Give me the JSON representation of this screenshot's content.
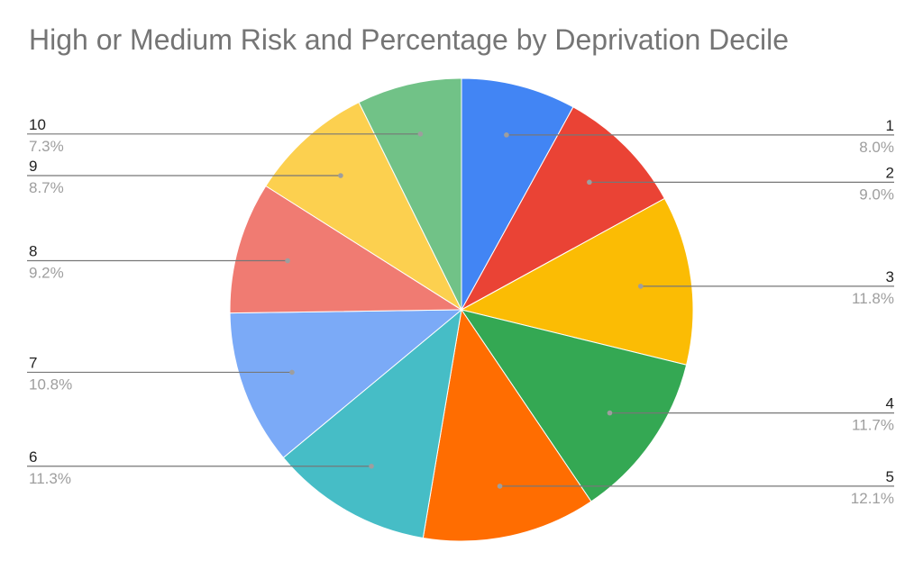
{
  "chart_data": {
    "type": "pie",
    "title": "High or Medium Risk and Percentage by Deprivation Decile",
    "slices": [
      {
        "label": "1",
        "percent_label": "8.0%",
        "value": 8.0,
        "color": "#4285F4"
      },
      {
        "label": "2",
        "percent_label": "9.0%",
        "value": 9.0,
        "color": "#EA4335"
      },
      {
        "label": "3",
        "percent_label": "11.8%",
        "value": 11.8,
        "color": "#FBBC04"
      },
      {
        "label": "4",
        "percent_label": "11.7%",
        "value": 11.7,
        "color": "#34A853"
      },
      {
        "label": "5",
        "percent_label": "12.1%",
        "value": 12.1,
        "color": "#FF6D01"
      },
      {
        "label": "6",
        "percent_label": "11.3%",
        "value": 11.3,
        "color": "#46BDC6"
      },
      {
        "label": "7",
        "percent_label": "10.8%",
        "value": 10.8,
        "color": "#7BAAF7"
      },
      {
        "label": "8",
        "percent_label": "9.2%",
        "value": 9.2,
        "color": "#F07B72"
      },
      {
        "label": "9",
        "percent_label": "8.7%",
        "value": 8.7,
        "color": "#FCD04F"
      },
      {
        "label": "10",
        "percent_label": "7.3%",
        "value": 7.3,
        "color": "#71C287"
      }
    ],
    "start_angle": "12 o'clock",
    "direction": "clockwise",
    "legend": "none",
    "labels": "outside, with leader lines"
  }
}
